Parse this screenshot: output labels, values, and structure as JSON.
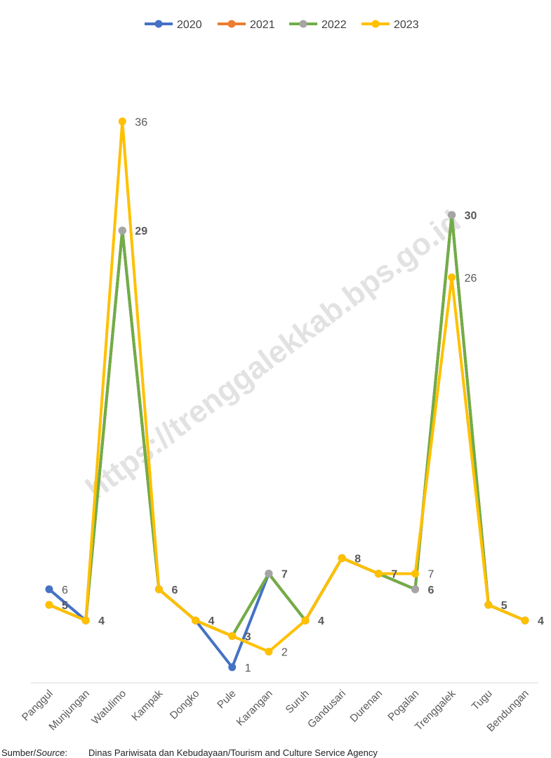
{
  "chart_data": {
    "type": "line",
    "title": "",
    "xlabel": "",
    "ylabel": "",
    "ylim": [
      0,
      40
    ],
    "grid": false,
    "legend_position": "top",
    "watermark": "https://trenggalekkab.bps.go.id",
    "categories": [
      "Panggul",
      "Munjungan",
      "Watulimo",
      "Kampak",
      "Dongko",
      "Pule",
      "Karangan",
      "Suruh",
      "Gandusari",
      "Durenan",
      "Pogalan",
      "Trenggalek",
      "Tugu",
      "Bendungan"
    ],
    "series": [
      {
        "name": "2020",
        "color": "#4472c4",
        "values": [
          6,
          4,
          29,
          6,
          4,
          1,
          7,
          4,
          8,
          7,
          6,
          30,
          5,
          4
        ]
      },
      {
        "name": "2021",
        "color": "#ed7d31",
        "values": [
          5,
          4,
          29,
          6,
          4,
          3,
          7,
          4,
          8,
          7,
          6,
          30,
          5,
          4
        ]
      },
      {
        "name": "2022",
        "color": "#a5a5a5",
        "line_color": "#70ad47",
        "values": [
          5,
          4,
          29,
          6,
          4,
          3,
          7,
          4,
          8,
          7,
          6,
          30,
          5,
          4
        ]
      },
      {
        "name": "2023",
        "color": "#ffc000",
        "values": [
          5,
          4,
          36,
          6,
          4,
          3,
          2,
          4,
          8,
          7,
          7,
          26,
          5,
          4
        ]
      }
    ],
    "data_labels": [
      {
        "text": "6",
        "category": "Panggul",
        "value": 6,
        "bold": false
      },
      {
        "text": "5",
        "category": "Panggul",
        "value": 5,
        "bold": true
      },
      {
        "text": "4",
        "category": "Munjungan",
        "value": 4,
        "bold": true
      },
      {
        "text": "36",
        "category": "Watulimo",
        "value": 36,
        "bold": false
      },
      {
        "text": "29",
        "category": "Watulimo",
        "value": 29,
        "bold": true
      },
      {
        "text": "6",
        "category": "Kampak",
        "value": 6,
        "bold": true
      },
      {
        "text": "4",
        "category": "Dongko",
        "value": 4,
        "bold": true
      },
      {
        "text": "3",
        "category": "Pule",
        "value": 3,
        "bold": true
      },
      {
        "text": "1",
        "category": "Pule",
        "value": 1,
        "bold": false
      },
      {
        "text": "7",
        "category": "Karangan",
        "value": 7,
        "bold": true
      },
      {
        "text": "2",
        "category": "Karangan",
        "value": 2,
        "bold": false
      },
      {
        "text": "4",
        "category": "Suruh",
        "value": 4,
        "bold": true
      },
      {
        "text": "8",
        "category": "Gandusari",
        "value": 8,
        "bold": true
      },
      {
        "text": "7",
        "category": "Durenan",
        "value": 7,
        "bold": true
      },
      {
        "text": "7",
        "category": "Pogalan",
        "value": 7,
        "bold": false
      },
      {
        "text": "6",
        "category": "Pogalan",
        "value": 6,
        "bold": true
      },
      {
        "text": "30",
        "category": "Trenggalek",
        "value": 30,
        "bold": true
      },
      {
        "text": "26",
        "category": "Trenggalek",
        "value": 26,
        "bold": false
      },
      {
        "text": "5",
        "category": "Tugu",
        "value": 5,
        "bold": true
      },
      {
        "text": "4",
        "category": "Bendungan",
        "value": 4,
        "bold": true
      }
    ]
  },
  "source": {
    "label_prefix": "Sumber/",
    "label_italic": "Source",
    "label_suffix": ":",
    "text": "Dinas Pariwisata dan Kebudayaan/Tourism and Culture Service Agency"
  }
}
